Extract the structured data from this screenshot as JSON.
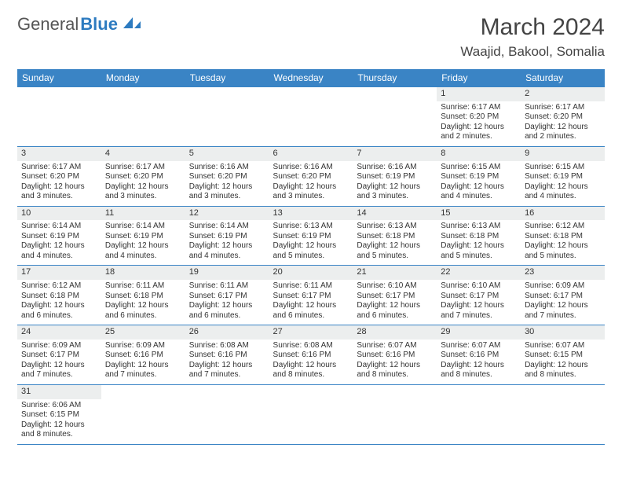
{
  "logo": {
    "part1": "General",
    "part2": "Blue",
    "shape_color": "#2d7bc0"
  },
  "title": "March 2024",
  "subtitle": "Waajid, Bakool, Somalia",
  "header_bg": "#3a84c5",
  "header_fg": "#ffffff",
  "daynum_bg": "#eceeee",
  "border_color": "#3a84c5",
  "day_names": [
    "Sunday",
    "Monday",
    "Tuesday",
    "Wednesday",
    "Thursday",
    "Friday",
    "Saturday"
  ],
  "weeks": [
    [
      {
        "n": "",
        "sr": "",
        "ss": "",
        "dl": ""
      },
      {
        "n": "",
        "sr": "",
        "ss": "",
        "dl": ""
      },
      {
        "n": "",
        "sr": "",
        "ss": "",
        "dl": ""
      },
      {
        "n": "",
        "sr": "",
        "ss": "",
        "dl": ""
      },
      {
        "n": "",
        "sr": "",
        "ss": "",
        "dl": ""
      },
      {
        "n": "1",
        "sr": "Sunrise: 6:17 AM",
        "ss": "Sunset: 6:20 PM",
        "dl": "Daylight: 12 hours and 2 minutes."
      },
      {
        "n": "2",
        "sr": "Sunrise: 6:17 AM",
        "ss": "Sunset: 6:20 PM",
        "dl": "Daylight: 12 hours and 2 minutes."
      }
    ],
    [
      {
        "n": "3",
        "sr": "Sunrise: 6:17 AM",
        "ss": "Sunset: 6:20 PM",
        "dl": "Daylight: 12 hours and 3 minutes."
      },
      {
        "n": "4",
        "sr": "Sunrise: 6:17 AM",
        "ss": "Sunset: 6:20 PM",
        "dl": "Daylight: 12 hours and 3 minutes."
      },
      {
        "n": "5",
        "sr": "Sunrise: 6:16 AM",
        "ss": "Sunset: 6:20 PM",
        "dl": "Daylight: 12 hours and 3 minutes."
      },
      {
        "n": "6",
        "sr": "Sunrise: 6:16 AM",
        "ss": "Sunset: 6:20 PM",
        "dl": "Daylight: 12 hours and 3 minutes."
      },
      {
        "n": "7",
        "sr": "Sunrise: 6:16 AM",
        "ss": "Sunset: 6:19 PM",
        "dl": "Daylight: 12 hours and 3 minutes."
      },
      {
        "n": "8",
        "sr": "Sunrise: 6:15 AM",
        "ss": "Sunset: 6:19 PM",
        "dl": "Daylight: 12 hours and 4 minutes."
      },
      {
        "n": "9",
        "sr": "Sunrise: 6:15 AM",
        "ss": "Sunset: 6:19 PM",
        "dl": "Daylight: 12 hours and 4 minutes."
      }
    ],
    [
      {
        "n": "10",
        "sr": "Sunrise: 6:14 AM",
        "ss": "Sunset: 6:19 PM",
        "dl": "Daylight: 12 hours and 4 minutes."
      },
      {
        "n": "11",
        "sr": "Sunrise: 6:14 AM",
        "ss": "Sunset: 6:19 PM",
        "dl": "Daylight: 12 hours and 4 minutes."
      },
      {
        "n": "12",
        "sr": "Sunrise: 6:14 AM",
        "ss": "Sunset: 6:19 PM",
        "dl": "Daylight: 12 hours and 4 minutes."
      },
      {
        "n": "13",
        "sr": "Sunrise: 6:13 AM",
        "ss": "Sunset: 6:19 PM",
        "dl": "Daylight: 12 hours and 5 minutes."
      },
      {
        "n": "14",
        "sr": "Sunrise: 6:13 AM",
        "ss": "Sunset: 6:18 PM",
        "dl": "Daylight: 12 hours and 5 minutes."
      },
      {
        "n": "15",
        "sr": "Sunrise: 6:13 AM",
        "ss": "Sunset: 6:18 PM",
        "dl": "Daylight: 12 hours and 5 minutes."
      },
      {
        "n": "16",
        "sr": "Sunrise: 6:12 AM",
        "ss": "Sunset: 6:18 PM",
        "dl": "Daylight: 12 hours and 5 minutes."
      }
    ],
    [
      {
        "n": "17",
        "sr": "Sunrise: 6:12 AM",
        "ss": "Sunset: 6:18 PM",
        "dl": "Daylight: 12 hours and 6 minutes."
      },
      {
        "n": "18",
        "sr": "Sunrise: 6:11 AM",
        "ss": "Sunset: 6:18 PM",
        "dl": "Daylight: 12 hours and 6 minutes."
      },
      {
        "n": "19",
        "sr": "Sunrise: 6:11 AM",
        "ss": "Sunset: 6:17 PM",
        "dl": "Daylight: 12 hours and 6 minutes."
      },
      {
        "n": "20",
        "sr": "Sunrise: 6:11 AM",
        "ss": "Sunset: 6:17 PM",
        "dl": "Daylight: 12 hours and 6 minutes."
      },
      {
        "n": "21",
        "sr": "Sunrise: 6:10 AM",
        "ss": "Sunset: 6:17 PM",
        "dl": "Daylight: 12 hours and 6 minutes."
      },
      {
        "n": "22",
        "sr": "Sunrise: 6:10 AM",
        "ss": "Sunset: 6:17 PM",
        "dl": "Daylight: 12 hours and 7 minutes."
      },
      {
        "n": "23",
        "sr": "Sunrise: 6:09 AM",
        "ss": "Sunset: 6:17 PM",
        "dl": "Daylight: 12 hours and 7 minutes."
      }
    ],
    [
      {
        "n": "24",
        "sr": "Sunrise: 6:09 AM",
        "ss": "Sunset: 6:17 PM",
        "dl": "Daylight: 12 hours and 7 minutes."
      },
      {
        "n": "25",
        "sr": "Sunrise: 6:09 AM",
        "ss": "Sunset: 6:16 PM",
        "dl": "Daylight: 12 hours and 7 minutes."
      },
      {
        "n": "26",
        "sr": "Sunrise: 6:08 AM",
        "ss": "Sunset: 6:16 PM",
        "dl": "Daylight: 12 hours and 7 minutes."
      },
      {
        "n": "27",
        "sr": "Sunrise: 6:08 AM",
        "ss": "Sunset: 6:16 PM",
        "dl": "Daylight: 12 hours and 8 minutes."
      },
      {
        "n": "28",
        "sr": "Sunrise: 6:07 AM",
        "ss": "Sunset: 6:16 PM",
        "dl": "Daylight: 12 hours and 8 minutes."
      },
      {
        "n": "29",
        "sr": "Sunrise: 6:07 AM",
        "ss": "Sunset: 6:16 PM",
        "dl": "Daylight: 12 hours and 8 minutes."
      },
      {
        "n": "30",
        "sr": "Sunrise: 6:07 AM",
        "ss": "Sunset: 6:15 PM",
        "dl": "Daylight: 12 hours and 8 minutes."
      }
    ],
    [
      {
        "n": "31",
        "sr": "Sunrise: 6:06 AM",
        "ss": "Sunset: 6:15 PM",
        "dl": "Daylight: 12 hours and 8 minutes."
      },
      {
        "n": "",
        "sr": "",
        "ss": "",
        "dl": ""
      },
      {
        "n": "",
        "sr": "",
        "ss": "",
        "dl": ""
      },
      {
        "n": "",
        "sr": "",
        "ss": "",
        "dl": ""
      },
      {
        "n": "",
        "sr": "",
        "ss": "",
        "dl": ""
      },
      {
        "n": "",
        "sr": "",
        "ss": "",
        "dl": ""
      },
      {
        "n": "",
        "sr": "",
        "ss": "",
        "dl": ""
      }
    ]
  ]
}
